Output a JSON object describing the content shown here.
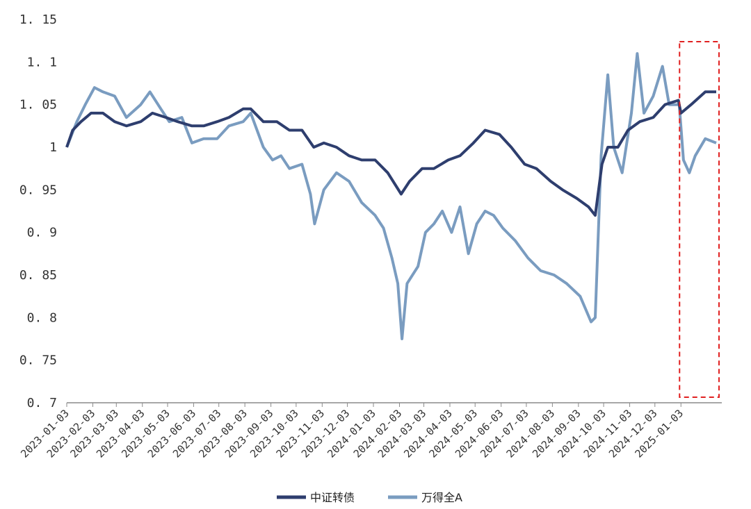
{
  "chart_data": {
    "type": "line",
    "title": "",
    "xlabel": "",
    "ylabel": "",
    "ylim": [
      0.7,
      1.15
    ],
    "yticks": [
      "0.7",
      "0.75",
      "0.8",
      "0.85",
      "0.9",
      "0.95",
      "1",
      "1.05",
      "1.1",
      "1.15"
    ],
    "x_start": "2023-01-03",
    "x_end": "2025-02-14",
    "xticks": [
      "2023-01-03",
      "2023-02-03",
      "2023-03-03",
      "2023-04-03",
      "2023-05-03",
      "2023-06-03",
      "2023-07-03",
      "2023-08-03",
      "2023-09-03",
      "2023-10-03",
      "2023-11-03",
      "2023-12-03",
      "2024-01-03",
      "2024-02-03",
      "2024-03-03",
      "2024-04-03",
      "2024-05-03",
      "2024-06-03",
      "2024-07-03",
      "2024-08-03",
      "2024-09-03",
      "2024-10-03",
      "2024-11-03",
      "2024-12-03",
      "2025-01-03"
    ],
    "grid": false,
    "legend_position": "bottom-center",
    "highlight": {
      "from": "2025-01-03",
      "to": "2025-02-14",
      "style": "dashed red rectangle"
    },
    "series": [
      {
        "name": "中证转债",
        "color": "#2e3e6e",
        "points": [
          [
            "2023-01-03",
            1.0
          ],
          [
            "2023-01-10",
            1.02
          ],
          [
            "2023-01-20",
            1.03
          ],
          [
            "2023-02-01",
            1.04
          ],
          [
            "2023-02-15",
            1.04
          ],
          [
            "2023-03-01",
            1.03
          ],
          [
            "2023-03-15",
            1.025
          ],
          [
            "2023-04-01",
            1.03
          ],
          [
            "2023-04-15",
            1.04
          ],
          [
            "2023-05-01",
            1.035
          ],
          [
            "2023-05-15",
            1.03
          ],
          [
            "2023-06-01",
            1.025
          ],
          [
            "2023-06-15",
            1.025
          ],
          [
            "2023-07-01",
            1.03
          ],
          [
            "2023-07-15",
            1.035
          ],
          [
            "2023-08-01",
            1.045
          ],
          [
            "2023-08-10",
            1.045
          ],
          [
            "2023-08-25",
            1.03
          ],
          [
            "2023-09-10",
            1.03
          ],
          [
            "2023-09-25",
            1.02
          ],
          [
            "2023-10-10",
            1.02
          ],
          [
            "2023-10-24",
            1.0
          ],
          [
            "2023-11-05",
            1.005
          ],
          [
            "2023-11-20",
            1.0
          ],
          [
            "2023-12-05",
            0.99
          ],
          [
            "2023-12-20",
            0.985
          ],
          [
            "2024-01-05",
            0.985
          ],
          [
            "2024-01-20",
            0.97
          ],
          [
            "2024-02-05",
            0.945
          ],
          [
            "2024-02-15",
            0.96
          ],
          [
            "2024-03-01",
            0.975
          ],
          [
            "2024-03-15",
            0.975
          ],
          [
            "2024-04-01",
            0.985
          ],
          [
            "2024-04-15",
            0.99
          ],
          [
            "2024-05-01",
            1.005
          ],
          [
            "2024-05-15",
            1.02
          ],
          [
            "2024-06-01",
            1.015
          ],
          [
            "2024-06-15",
            1.0
          ],
          [
            "2024-07-01",
            0.98
          ],
          [
            "2024-07-15",
            0.975
          ],
          [
            "2024-08-01",
            0.96
          ],
          [
            "2024-08-15",
            0.95
          ],
          [
            "2024-09-01",
            0.94
          ],
          [
            "2024-09-15",
            0.93
          ],
          [
            "2024-09-23",
            0.92
          ],
          [
            "2024-10-01",
            0.98
          ],
          [
            "2024-10-08",
            1.0
          ],
          [
            "2024-10-20",
            1.0
          ],
          [
            "2024-11-01",
            1.02
          ],
          [
            "2024-11-15",
            1.03
          ],
          [
            "2024-12-01",
            1.035
          ],
          [
            "2024-12-15",
            1.05
          ],
          [
            "2024-12-31",
            1.055
          ],
          [
            "2025-01-03",
            1.04
          ],
          [
            "2025-01-15",
            1.05
          ],
          [
            "2025-02-01",
            1.065
          ],
          [
            "2025-02-14",
            1.065
          ]
        ]
      },
      {
        "name": "万得全A",
        "color": "#7a9cc0",
        "points": [
          [
            "2023-01-03",
            1.0
          ],
          [
            "2023-01-15",
            1.03
          ],
          [
            "2023-01-25",
            1.05
          ],
          [
            "2023-02-05",
            1.07
          ],
          [
            "2023-02-15",
            1.065
          ],
          [
            "2023-03-01",
            1.06
          ],
          [
            "2023-03-15",
            1.035
          ],
          [
            "2023-04-01",
            1.05
          ],
          [
            "2023-04-12",
            1.065
          ],
          [
            "2023-04-25",
            1.045
          ],
          [
            "2023-05-05",
            1.03
          ],
          [
            "2023-05-20",
            1.035
          ],
          [
            "2023-06-01",
            1.005
          ],
          [
            "2023-06-15",
            1.01
          ],
          [
            "2023-07-01",
            1.01
          ],
          [
            "2023-07-15",
            1.025
          ],
          [
            "2023-08-01",
            1.03
          ],
          [
            "2023-08-10",
            1.04
          ],
          [
            "2023-08-25",
            1.0
          ],
          [
            "2023-09-05",
            0.985
          ],
          [
            "2023-09-15",
            0.99
          ],
          [
            "2023-09-25",
            0.975
          ],
          [
            "2023-10-10",
            0.98
          ],
          [
            "2023-10-20",
            0.945
          ],
          [
            "2023-10-25",
            0.91
          ],
          [
            "2023-11-05",
            0.95
          ],
          [
            "2023-11-20",
            0.97
          ],
          [
            "2023-12-05",
            0.96
          ],
          [
            "2023-12-20",
            0.935
          ],
          [
            "2024-01-05",
            0.92
          ],
          [
            "2024-01-15",
            0.905
          ],
          [
            "2024-01-25",
            0.87
          ],
          [
            "2024-02-01",
            0.84
          ],
          [
            "2024-02-06",
            0.775
          ],
          [
            "2024-02-12",
            0.84
          ],
          [
            "2024-02-25",
            0.86
          ],
          [
            "2024-03-05",
            0.9
          ],
          [
            "2024-03-15",
            0.91
          ],
          [
            "2024-03-25",
            0.925
          ],
          [
            "2024-04-05",
            0.9
          ],
          [
            "2024-04-15",
            0.93
          ],
          [
            "2024-04-25",
            0.875
          ],
          [
            "2024-05-05",
            0.91
          ],
          [
            "2024-05-15",
            0.925
          ],
          [
            "2024-05-25",
            0.92
          ],
          [
            "2024-06-05",
            0.905
          ],
          [
            "2024-06-20",
            0.89
          ],
          [
            "2024-07-05",
            0.87
          ],
          [
            "2024-07-20",
            0.855
          ],
          [
            "2024-08-05",
            0.85
          ],
          [
            "2024-08-20",
            0.84
          ],
          [
            "2024-09-05",
            0.825
          ],
          [
            "2024-09-18",
            0.795
          ],
          [
            "2024-09-23",
            0.8
          ],
          [
            "2024-09-30",
            0.99
          ],
          [
            "2024-10-08",
            1.085
          ],
          [
            "2024-10-15",
            1.0
          ],
          [
            "2024-10-25",
            0.97
          ],
          [
            "2024-11-05",
            1.04
          ],
          [
            "2024-11-12",
            1.11
          ],
          [
            "2024-11-20",
            1.04
          ],
          [
            "2024-12-01",
            1.06
          ],
          [
            "2024-12-12",
            1.095
          ],
          [
            "2024-12-20",
            1.05
          ],
          [
            "2025-01-01",
            1.05
          ],
          [
            "2025-01-06",
            0.985
          ],
          [
            "2025-01-13",
            0.97
          ],
          [
            "2025-01-20",
            0.99
          ],
          [
            "2025-02-01",
            1.01
          ],
          [
            "2025-02-14",
            1.005
          ]
        ]
      }
    ]
  }
}
